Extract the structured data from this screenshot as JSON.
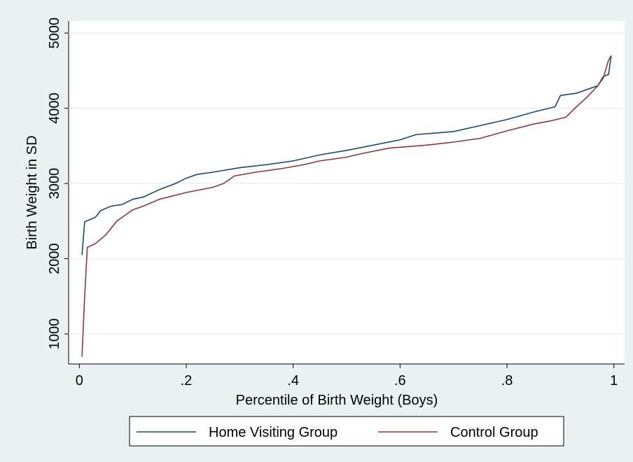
{
  "chart_data": {
    "type": "line",
    "x_label": "Percentile of Birth Weight (Boys)",
    "y_label": "Birth Weight in SD",
    "xlim": [
      -0.02,
      1.02
    ],
    "ylim": [
      600,
      5160
    ],
    "xticks": [
      0,
      {
        "value": 0.2,
        "label": ".2"
      },
      {
        "value": 0.4,
        "label": ".4"
      },
      {
        "value": 0.6,
        "label": ".6"
      },
      {
        "value": 0.8,
        "label": ".8"
      },
      1
    ],
    "yticks": [
      1000,
      2000,
      3000,
      4000,
      5000
    ],
    "grid": true,
    "legend": "bottom",
    "series": [
      {
        "name": "Home Visiting Group",
        "color": "#1a476f",
        "x": [
          0.005,
          0.01,
          0.03,
          0.04,
          0.06,
          0.08,
          0.1,
          0.12,
          0.15,
          0.18,
          0.2,
          0.22,
          0.25,
          0.3,
          0.35,
          0.4,
          0.45,
          0.5,
          0.55,
          0.6,
          0.63,
          0.7,
          0.75,
          0.8,
          0.85,
          0.89,
          0.9,
          0.93,
          0.95,
          0.97,
          0.98,
          0.99,
          0.995
        ],
        "values": [
          2050,
          2490,
          2550,
          2640,
          2700,
          2720,
          2790,
          2820,
          2920,
          3000,
          3070,
          3120,
          3150,
          3210,
          3250,
          3300,
          3380,
          3440,
          3510,
          3580,
          3650,
          3690,
          3770,
          3850,
          3950,
          4020,
          4170,
          4200,
          4250,
          4300,
          4420,
          4450,
          4700
        ]
      },
      {
        "name": "Control Group",
        "color": "#90353b",
        "x": [
          0.005,
          0.01,
          0.015,
          0.03,
          0.05,
          0.07,
          0.1,
          0.12,
          0.15,
          0.2,
          0.25,
          0.27,
          0.29,
          0.33,
          0.38,
          0.42,
          0.45,
          0.5,
          0.53,
          0.58,
          0.65,
          0.7,
          0.75,
          0.8,
          0.85,
          0.88,
          0.91,
          0.93,
          0.95,
          0.97,
          0.98,
          0.99,
          0.995
        ],
        "values": [
          700,
          1500,
          2150,
          2200,
          2320,
          2500,
          2650,
          2700,
          2790,
          2880,
          2950,
          3000,
          3100,
          3150,
          3200,
          3250,
          3300,
          3350,
          3400,
          3470,
          3510,
          3550,
          3600,
          3700,
          3790,
          3830,
          3880,
          4020,
          4150,
          4300,
          4400,
          4640,
          4700
        ]
      }
    ]
  }
}
